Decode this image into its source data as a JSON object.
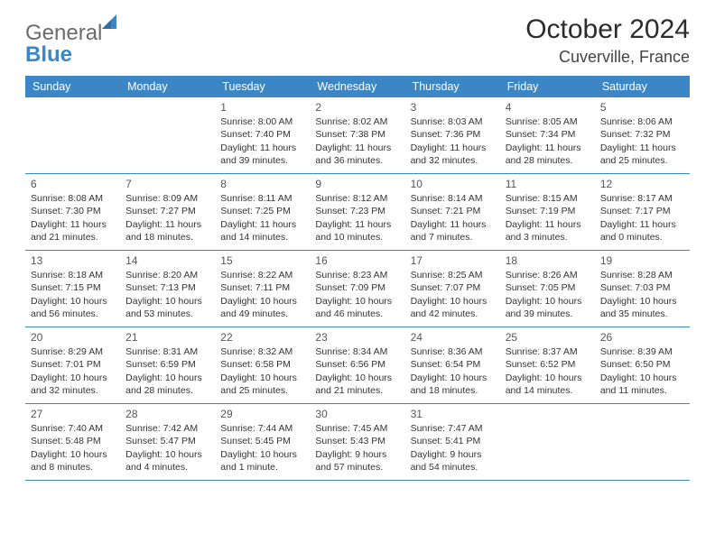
{
  "logo": {
    "general": "General",
    "blue": "Blue"
  },
  "title": "October 2024",
  "location": "Cuverville, France",
  "colors": {
    "header_blue": "#3d86c6",
    "logo_gray": "#6b6b6b",
    "logo_blue": "#3d86c6",
    "background": "#ffffff",
    "text_dark": "#2b2b2b"
  },
  "weekdays": [
    "Sunday",
    "Monday",
    "Tuesday",
    "Wednesday",
    "Thursday",
    "Friday",
    "Saturday"
  ],
  "weeks": [
    [
      null,
      null,
      {
        "n": "1",
        "sunrise": "8:00 AM",
        "sunset": "7:40 PM",
        "daylight": "11 hours and 39 minutes."
      },
      {
        "n": "2",
        "sunrise": "8:02 AM",
        "sunset": "7:38 PM",
        "daylight": "11 hours and 36 minutes."
      },
      {
        "n": "3",
        "sunrise": "8:03 AM",
        "sunset": "7:36 PM",
        "daylight": "11 hours and 32 minutes."
      },
      {
        "n": "4",
        "sunrise": "8:05 AM",
        "sunset": "7:34 PM",
        "daylight": "11 hours and 28 minutes."
      },
      {
        "n": "5",
        "sunrise": "8:06 AM",
        "sunset": "7:32 PM",
        "daylight": "11 hours and 25 minutes."
      }
    ],
    [
      {
        "n": "6",
        "sunrise": "8:08 AM",
        "sunset": "7:30 PM",
        "daylight": "11 hours and 21 minutes."
      },
      {
        "n": "7",
        "sunrise": "8:09 AM",
        "sunset": "7:27 PM",
        "daylight": "11 hours and 18 minutes."
      },
      {
        "n": "8",
        "sunrise": "8:11 AM",
        "sunset": "7:25 PM",
        "daylight": "11 hours and 14 minutes."
      },
      {
        "n": "9",
        "sunrise": "8:12 AM",
        "sunset": "7:23 PM",
        "daylight": "11 hours and 10 minutes."
      },
      {
        "n": "10",
        "sunrise": "8:14 AM",
        "sunset": "7:21 PM",
        "daylight": "11 hours and 7 minutes."
      },
      {
        "n": "11",
        "sunrise": "8:15 AM",
        "sunset": "7:19 PM",
        "daylight": "11 hours and 3 minutes."
      },
      {
        "n": "12",
        "sunrise": "8:17 AM",
        "sunset": "7:17 PM",
        "daylight": "11 hours and 0 minutes."
      }
    ],
    [
      {
        "n": "13",
        "sunrise": "8:18 AM",
        "sunset": "7:15 PM",
        "daylight": "10 hours and 56 minutes."
      },
      {
        "n": "14",
        "sunrise": "8:20 AM",
        "sunset": "7:13 PM",
        "daylight": "10 hours and 53 minutes."
      },
      {
        "n": "15",
        "sunrise": "8:22 AM",
        "sunset": "7:11 PM",
        "daylight": "10 hours and 49 minutes."
      },
      {
        "n": "16",
        "sunrise": "8:23 AM",
        "sunset": "7:09 PM",
        "daylight": "10 hours and 46 minutes."
      },
      {
        "n": "17",
        "sunrise": "8:25 AM",
        "sunset": "7:07 PM",
        "daylight": "10 hours and 42 minutes."
      },
      {
        "n": "18",
        "sunrise": "8:26 AM",
        "sunset": "7:05 PM",
        "daylight": "10 hours and 39 minutes."
      },
      {
        "n": "19",
        "sunrise": "8:28 AM",
        "sunset": "7:03 PM",
        "daylight": "10 hours and 35 minutes."
      }
    ],
    [
      {
        "n": "20",
        "sunrise": "8:29 AM",
        "sunset": "7:01 PM",
        "daylight": "10 hours and 32 minutes."
      },
      {
        "n": "21",
        "sunrise": "8:31 AM",
        "sunset": "6:59 PM",
        "daylight": "10 hours and 28 minutes."
      },
      {
        "n": "22",
        "sunrise": "8:32 AM",
        "sunset": "6:58 PM",
        "daylight": "10 hours and 25 minutes."
      },
      {
        "n": "23",
        "sunrise": "8:34 AM",
        "sunset": "6:56 PM",
        "daylight": "10 hours and 21 minutes."
      },
      {
        "n": "24",
        "sunrise": "8:36 AM",
        "sunset": "6:54 PM",
        "daylight": "10 hours and 18 minutes."
      },
      {
        "n": "25",
        "sunrise": "8:37 AM",
        "sunset": "6:52 PM",
        "daylight": "10 hours and 14 minutes."
      },
      {
        "n": "26",
        "sunrise": "8:39 AM",
        "sunset": "6:50 PM",
        "daylight": "10 hours and 11 minutes."
      }
    ],
    [
      {
        "n": "27",
        "sunrise": "7:40 AM",
        "sunset": "5:48 PM",
        "daylight": "10 hours and 8 minutes."
      },
      {
        "n": "28",
        "sunrise": "7:42 AM",
        "sunset": "5:47 PM",
        "daylight": "10 hours and 4 minutes."
      },
      {
        "n": "29",
        "sunrise": "7:44 AM",
        "sunset": "5:45 PM",
        "daylight": "10 hours and 1 minute."
      },
      {
        "n": "30",
        "sunrise": "7:45 AM",
        "sunset": "5:43 PM",
        "daylight": "9 hours and 57 minutes."
      },
      {
        "n": "31",
        "sunrise": "7:47 AM",
        "sunset": "5:41 PM",
        "daylight": "9 hours and 54 minutes."
      },
      null,
      null
    ]
  ],
  "labels": {
    "sunrise": "Sunrise:",
    "sunset": "Sunset:",
    "daylight": "Daylight:"
  }
}
